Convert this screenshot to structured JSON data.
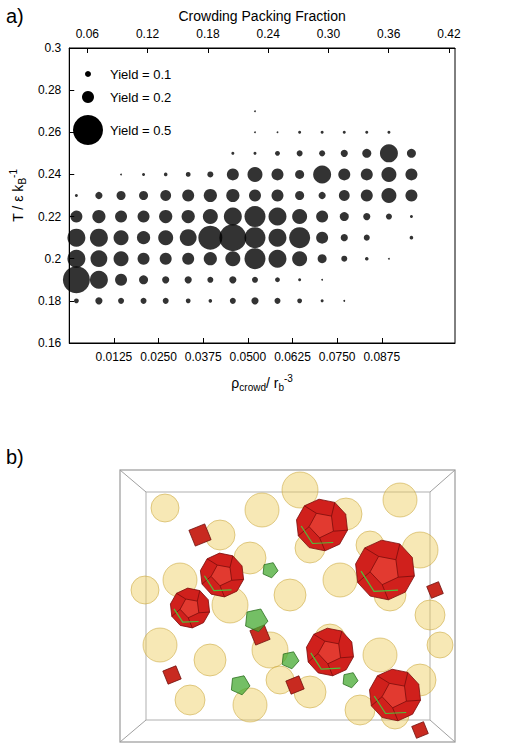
{
  "chart_data": {
    "type": "scatter",
    "panel_label": "a)",
    "x_label": [
      {
        "text": "ρ"
      },
      {
        "text": "crowd",
        "sub": true
      },
      {
        "text": "/ r"
      },
      {
        "text": "b",
        "sub": true
      },
      {
        "text": "-3",
        "sup": true
      }
    ],
    "x2_label": "Crowding Packing Fraction",
    "y_label": [
      {
        "text": "T / ε k"
      },
      {
        "text": "B",
        "sub": true
      },
      {
        "text": "-1",
        "sup": true
      }
    ],
    "xlim": [
      0,
      0.108
    ],
    "xticks": [
      0.0125,
      {
        "value": 0.025,
        "label": "0.0250"
      },
      0.0375,
      {
        "value": 0.05,
        "label": "0.0500"
      },
      0.0625,
      {
        "value": 0.075,
        "label": "0.0750"
      },
      0.0875
    ],
    "x2lim": [
      0.042,
      0.426
    ],
    "x2ticks": [
      0.06,
      0.12,
      0.18,
      0.24,
      {
        "value": 0.3,
        "label": "0.30"
      },
      0.36,
      0.42
    ],
    "ylim": [
      0.16,
      0.3
    ],
    "yticks": [
      0.16,
      0.18,
      0.2,
      0.22,
      0.24,
      0.26,
      0.28,
      0.3
    ],
    "color": "#000000",
    "marker": "circle",
    "size_legend": [
      {
        "label": "Yield = 0.1",
        "value": 0.1
      },
      {
        "label": "Yield = 0.2",
        "value": 0.2
      },
      {
        "label": "Yield = 0.5",
        "value": 0.5
      }
    ],
    "points": [
      [
        0.002,
        0.18,
        0.08
      ],
      [
        0.0083,
        0.18,
        0.12
      ],
      [
        0.0145,
        0.18,
        0.1
      ],
      [
        0.0208,
        0.18,
        0.1
      ],
      [
        0.027,
        0.18,
        0.1
      ],
      [
        0.0333,
        0.18,
        0.08
      ],
      [
        0.0395,
        0.18,
        0.06
      ],
      [
        0.0458,
        0.18,
        0.1
      ],
      [
        0.052,
        0.18,
        0.12
      ],
      [
        0.0583,
        0.18,
        0.1
      ],
      [
        0.0645,
        0.18,
        0.08
      ],
      [
        0.0708,
        0.18,
        0.05
      ],
      [
        0.077,
        0.18,
        0.03
      ],
      [
        0.002,
        0.19,
        0.45
      ],
      [
        0.0083,
        0.19,
        0.3
      ],
      [
        0.0145,
        0.19,
        0.2
      ],
      [
        0.0208,
        0.19,
        0.15
      ],
      [
        0.027,
        0.19,
        0.12
      ],
      [
        0.0333,
        0.19,
        0.12
      ],
      [
        0.0395,
        0.19,
        0.1
      ],
      [
        0.0458,
        0.19,
        0.12
      ],
      [
        0.052,
        0.19,
        0.1
      ],
      [
        0.0583,
        0.19,
        0.08
      ],
      [
        0.0645,
        0.19,
        0.05
      ],
      [
        0.0708,
        0.19,
        0.03
      ],
      [
        0.002,
        0.2,
        0.3
      ],
      [
        0.0083,
        0.2,
        0.28
      ],
      [
        0.0145,
        0.2,
        0.25
      ],
      [
        0.0208,
        0.2,
        0.2
      ],
      [
        0.027,
        0.2,
        0.2
      ],
      [
        0.0333,
        0.2,
        0.2
      ],
      [
        0.0395,
        0.2,
        0.22
      ],
      [
        0.0458,
        0.2,
        0.25
      ],
      [
        0.052,
        0.2,
        0.35
      ],
      [
        0.0583,
        0.2,
        0.3
      ],
      [
        0.0645,
        0.2,
        0.25
      ],
      [
        0.0708,
        0.2,
        0.15
      ],
      [
        0.077,
        0.2,
        0.1
      ],
      [
        0.0833,
        0.2,
        0.06
      ],
      [
        0.0895,
        0.2,
        0.03
      ],
      [
        0.002,
        0.21,
        0.3
      ],
      [
        0.0083,
        0.21,
        0.3
      ],
      [
        0.0145,
        0.21,
        0.25
      ],
      [
        0.0208,
        0.21,
        0.22
      ],
      [
        0.027,
        0.21,
        0.25
      ],
      [
        0.0333,
        0.21,
        0.28
      ],
      [
        0.0395,
        0.21,
        0.4
      ],
      [
        0.0458,
        0.21,
        0.45
      ],
      [
        0.052,
        0.21,
        0.35
      ],
      [
        0.0583,
        0.21,
        0.3
      ],
      [
        0.0645,
        0.21,
        0.35
      ],
      [
        0.0708,
        0.21,
        0.2
      ],
      [
        0.077,
        0.21,
        0.12
      ],
      [
        0.0833,
        0.21,
        0.1
      ],
      [
        0.0958,
        0.21,
        0.06
      ],
      [
        0.002,
        0.22,
        0.2
      ],
      [
        0.0083,
        0.22,
        0.22
      ],
      [
        0.0145,
        0.22,
        0.2
      ],
      [
        0.0208,
        0.22,
        0.2
      ],
      [
        0.027,
        0.22,
        0.22
      ],
      [
        0.0333,
        0.22,
        0.22
      ],
      [
        0.0395,
        0.22,
        0.25
      ],
      [
        0.0458,
        0.22,
        0.3
      ],
      [
        0.052,
        0.22,
        0.35
      ],
      [
        0.0583,
        0.22,
        0.3
      ],
      [
        0.0645,
        0.22,
        0.25
      ],
      [
        0.0708,
        0.22,
        0.2
      ],
      [
        0.077,
        0.22,
        0.15
      ],
      [
        0.0833,
        0.22,
        0.12
      ],
      [
        0.0895,
        0.22,
        0.1
      ],
      [
        0.0958,
        0.22,
        0.05
      ],
      [
        0.002,
        0.23,
        0.05
      ],
      [
        0.0083,
        0.23,
        0.12
      ],
      [
        0.0145,
        0.23,
        0.15
      ],
      [
        0.0208,
        0.23,
        0.15
      ],
      [
        0.027,
        0.23,
        0.18
      ],
      [
        0.0333,
        0.23,
        0.2
      ],
      [
        0.0395,
        0.23,
        0.22
      ],
      [
        0.0458,
        0.23,
        0.22
      ],
      [
        0.052,
        0.23,
        0.2
      ],
      [
        0.0583,
        0.23,
        0.2
      ],
      [
        0.0645,
        0.23,
        0.15
      ],
      [
        0.0708,
        0.23,
        0.12
      ],
      [
        0.077,
        0.23,
        0.18
      ],
      [
        0.0833,
        0.23,
        0.2
      ],
      [
        0.0895,
        0.23,
        0.25
      ],
      [
        0.0958,
        0.23,
        0.2
      ],
      [
        0.0145,
        0.24,
        0.03
      ],
      [
        0.0208,
        0.24,
        0.05
      ],
      [
        0.027,
        0.24,
        0.06
      ],
      [
        0.0333,
        0.24,
        0.08
      ],
      [
        0.0395,
        0.24,
        0.1
      ],
      [
        0.0458,
        0.24,
        0.2
      ],
      [
        0.052,
        0.24,
        0.25
      ],
      [
        0.0583,
        0.24,
        0.2
      ],
      [
        0.0645,
        0.24,
        0.15
      ],
      [
        0.0708,
        0.24,
        0.3
      ],
      [
        0.077,
        0.24,
        0.2
      ],
      [
        0.0833,
        0.24,
        0.2
      ],
      [
        0.0895,
        0.24,
        0.25
      ],
      [
        0.0958,
        0.24,
        0.2
      ],
      [
        0.0458,
        0.25,
        0.05
      ],
      [
        0.052,
        0.25,
        0.05
      ],
      [
        0.0583,
        0.25,
        0.08
      ],
      [
        0.0645,
        0.25,
        0.1
      ],
      [
        0.0708,
        0.25,
        0.1
      ],
      [
        0.077,
        0.25,
        0.12
      ],
      [
        0.0833,
        0.25,
        0.15
      ],
      [
        0.0895,
        0.25,
        0.3
      ],
      [
        0.0958,
        0.25,
        0.15
      ],
      [
        0.052,
        0.26,
        0.03
      ],
      [
        0.0583,
        0.26,
        0.03
      ],
      [
        0.0645,
        0.26,
        0.05
      ],
      [
        0.0708,
        0.26,
        0.05
      ],
      [
        0.077,
        0.26,
        0.05
      ],
      [
        0.0833,
        0.26,
        0.05
      ],
      [
        0.0895,
        0.26,
        0.05
      ],
      [
        0.052,
        0.27,
        0.03
      ]
    ]
  },
  "panel_b": {
    "label": "b)"
  }
}
